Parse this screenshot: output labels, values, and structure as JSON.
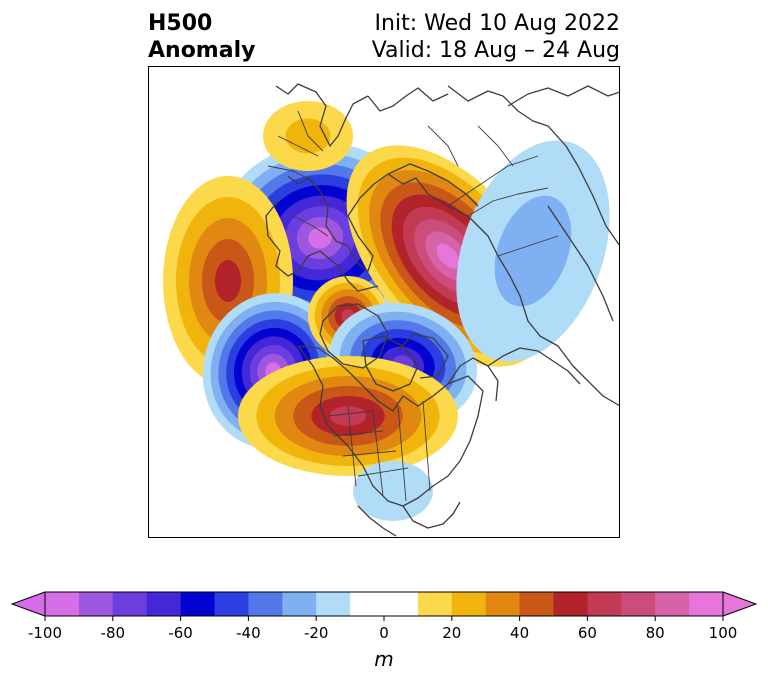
{
  "title": {
    "left": "H500\nAnomaly",
    "right_line1": "Init: Wed 10 Aug 2022",
    "right_line2": "Valid: 18 Aug – 24 Aug"
  },
  "map": {
    "projection": "north-polar-stereographic",
    "anomalies": [
      {
        "region": "northern-europe-scandinavia",
        "sign": "negative",
        "peak": -95
      },
      {
        "region": "western-russia-siberia",
        "sign": "positive",
        "peak": 95
      },
      {
        "region": "north-atlantic",
        "sign": "positive",
        "peak": 50
      },
      {
        "region": "mediterranean-north-africa",
        "sign": "negative",
        "peak": -95
      },
      {
        "region": "north-pole-arctic",
        "sign": "positive",
        "peak": 60
      },
      {
        "region": "canadian-arctic-archipelago",
        "sign": "negative",
        "peak": -75
      },
      {
        "region": "central-north-america",
        "sign": "positive",
        "peak": 65
      },
      {
        "region": "greenland-north",
        "sign": "positive",
        "peak": 20
      },
      {
        "region": "east-siberia-north-pacific",
        "sign": "negative",
        "peak": -25
      },
      {
        "region": "gulf-of-mexico",
        "sign": "negative",
        "peak": -15
      }
    ]
  },
  "colorbar": {
    "label": "m",
    "ticks": [
      "-100",
      "-80",
      "-60",
      "-40",
      "-20",
      "0",
      "20",
      "40",
      "60",
      "80",
      "100"
    ],
    "levels": [
      -100,
      -90,
      -80,
      -70,
      -60,
      -50,
      -40,
      -30,
      -20,
      -10,
      10,
      20,
      30,
      40,
      50,
      60,
      70,
      80,
      90,
      100
    ],
    "colors": [
      "#d66ee8",
      "#9d56de",
      "#6b3ee0",
      "#4427d6",
      "#0303d1",
      "#2b3fe0",
      "#5278ea",
      "#7eb0f2",
      "#b1dcf8",
      "#ffffff",
      "#fbd94a",
      "#f1b40c",
      "#e08812",
      "#c85718",
      "#b2232a",
      "#c23a53",
      "#cc4d7c",
      "#d662a8",
      "#e676d9"
    ],
    "extend_low_color": "#d66ee8",
    "extend_high_color": "#e676d9"
  }
}
